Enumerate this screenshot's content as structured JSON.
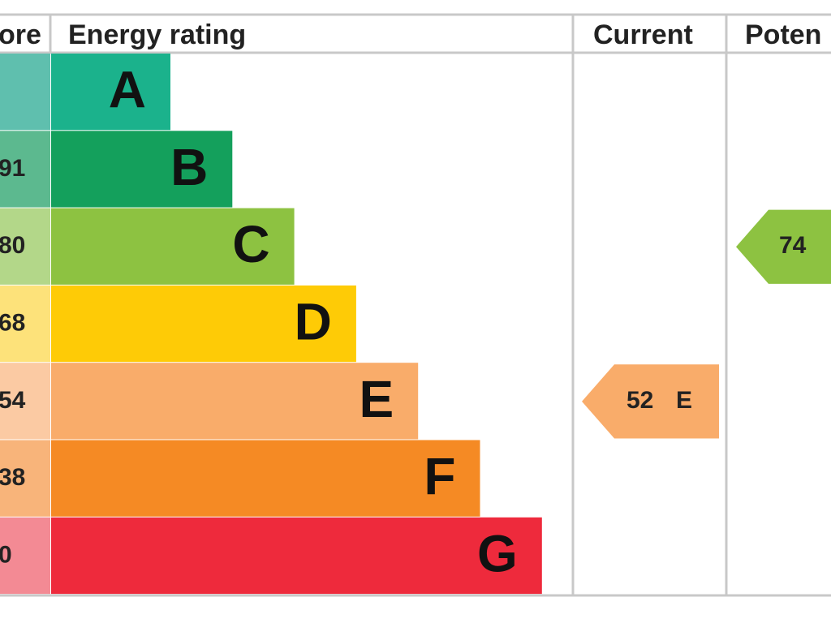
{
  "header": {
    "score": "ore",
    "rating": "Energy rating",
    "current": "Current",
    "potential": "Poten"
  },
  "rows": [
    {
      "score": null,
      "band": "A",
      "color": "#1bb28c",
      "score_color": "#5fbfae"
    },
    {
      "score": "91",
      "band": "B",
      "color": "#14a05c",
      "score_color": "#5cb98f"
    },
    {
      "score": "80",
      "band": "C",
      "color": "#8dc241",
      "score_color": "#b3d789"
    },
    {
      "score": "68",
      "band": "D",
      "color": "#fecb06",
      "score_color": "#fde27a"
    },
    {
      "score": "54",
      "band": "E",
      "color": "#f9ac6a",
      "score_color": "#fbcaa3"
    },
    {
      "score": "38",
      "band": "F",
      "color": "#f58a24",
      "score_color": "#f8b47a"
    },
    {
      "score": "0",
      "band": "G",
      "color": "#ee2a3c",
      "score_color": "#f38a94"
    }
  ],
  "current": {
    "value": "52",
    "band": "E",
    "color": "#f9ac6a"
  },
  "potential": {
    "value": "74",
    "color": "#8dc241"
  }
}
